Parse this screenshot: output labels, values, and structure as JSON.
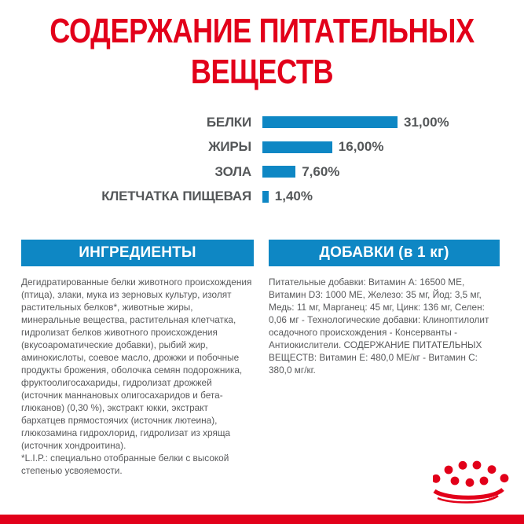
{
  "title": {
    "text": "СОДЕРЖАНИЕ ПИТАТЕЛЬНЫХ ВЕЩЕСТВ",
    "lines": [
      "СОДЕРЖАНИЕ ПИТАТЕЛЬНЫХ",
      "ВЕЩЕСТВ"
    ]
  },
  "chart_data": {
    "type": "bar",
    "orientation": "horizontal",
    "categories": [
      "БЕЛКИ",
      "ЖИРЫ",
      "ЗОЛА",
      "КЛЕТЧАТКА ПИЩЕВАЯ"
    ],
    "values": [
      31.0,
      16.0,
      7.6,
      1.4
    ],
    "value_labels": [
      "31,00%",
      "16,00%",
      "7,60%",
      "1,40%"
    ],
    "unit": "%",
    "xlim": [
      0,
      31
    ],
    "grid": false,
    "legend": false,
    "bar_color": "#0e87c4",
    "label_color": "#545759"
  },
  "sections": {
    "ingredients": {
      "header": "ИНГРЕДИЕНТЫ",
      "body": "Дегидратированные белки животного происхождения (птица), злаки, мука из зерновых культур, изолят растительных белков*, животные жиры, минеральные вещества, растительная клетчатка, гидролизат белков животного происхождения (вкусоароматические добавки), рыбий жир, аминокислоты, соевое масло, дрожжи и побочные продукты брожения, оболочка семян подорожника, фруктоолигосахариды, гидролизат дрожжей (источник маннановых олигосахаридов и бета-глюканов) (0,30 %), экстракт юкки, экстракт бархатцев прямостоячих (источник лютеина), глюкозамина гидрохлорид, гидролизат из хряща (источник хондроитина).",
      "footnote": "*L.I.P.: специально отобранные белки с высокой степенью усвояемости."
    },
    "additives": {
      "header": "ДОБАВКИ (в 1 кг)",
      "body": "Питательные добавки: Витамин A: 16500 МЕ, Витамин D3: 1000 МЕ, Железо: 35 мг, Йод: 3,5 мг, Медь: 11 мг, Марганец: 45 мг, Цинк: 136 мг, Селен: 0,06 мг - Технологические добавки: Клиноптилолит осадочного происхождения - Консерванты - Антиокислители. СОДЕРЖАНИЕ ПИТАТЕЛЬНЫХ ВЕЩЕСТВ: Витамин E: 480,0 МЕ/кг - Витамин C: 380,0 мг/кг."
    }
  },
  "brand": {
    "logo_name": "royal-canin-crown",
    "registered_mark": "R"
  },
  "colors": {
    "accent_red": "#e2001a",
    "accent_blue": "#0e87c4",
    "text_gray": "#58595b",
    "label_gray": "#545759"
  }
}
